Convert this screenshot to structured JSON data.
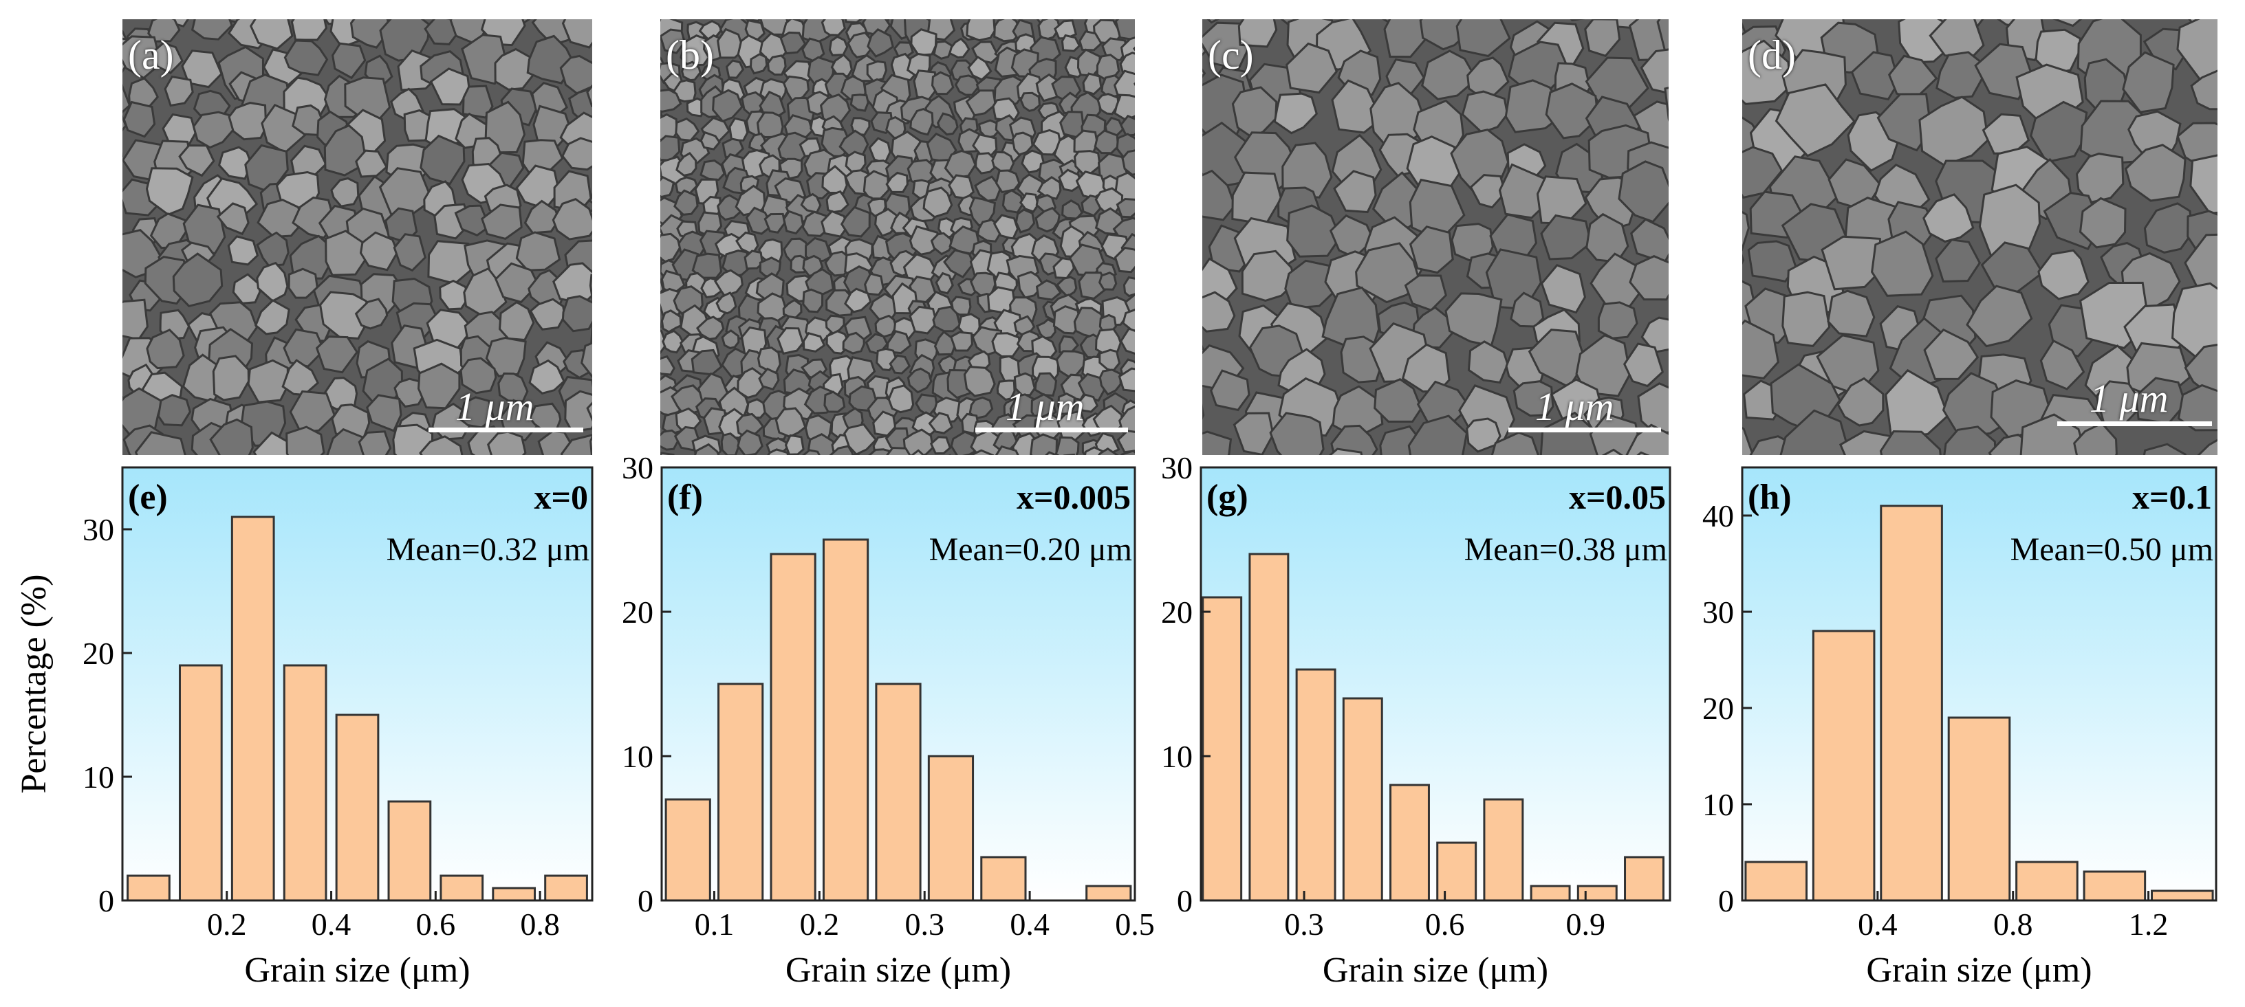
{
  "sem_panels": [
    {
      "label": "(a)",
      "scale": "1 μm"
    },
    {
      "label": "(b)",
      "scale": "1 μm"
    },
    {
      "label": "(c)",
      "scale": "1 μm"
    },
    {
      "label": "(d)",
      "scale": "1 μm"
    }
  ],
  "colors": {
    "bar_fill": "#fcc89a",
    "bar_stroke": "#333333",
    "bg_top": "#a6e6fb",
    "bg_bottom": "#ffffff"
  },
  "chart_data": [
    {
      "type": "bar",
      "panel": "(e)",
      "composition": "x=0",
      "mean": "Mean=0.32 μm",
      "xlabel": "Grain size (μm)",
      "ylabel": "Percentage (%)",
      "x": [
        0.05,
        0.15,
        0.25,
        0.35,
        0.45,
        0.55,
        0.65,
        0.75,
        0.85
      ],
      "values": [
        2,
        19,
        31,
        19,
        15,
        8,
        2,
        1,
        2
      ],
      "bar_width": 0.08,
      "xlim": [
        0,
        0.9
      ],
      "ylim": [
        0,
        35
      ],
      "xticks": [
        0.2,
        0.4,
        0.6,
        0.8
      ],
      "xtick_labels": [
        "0.2",
        "0.4",
        "0.6",
        "0.8"
      ],
      "yticks": [
        0,
        10,
        20,
        30
      ],
      "ytick_labels": [
        "0",
        "10",
        "20",
        "30"
      ]
    },
    {
      "type": "bar",
      "panel": "(f)",
      "composition": "x=0.005",
      "mean": "Mean=0.20 μm",
      "xlabel": "Grain size (μm)",
      "ylabel": "",
      "x": [
        0.075,
        0.125,
        0.175,
        0.225,
        0.275,
        0.325,
        0.375,
        0.425,
        0.475
      ],
      "values": [
        7,
        15,
        24,
        25,
        15,
        10,
        3,
        0,
        1
      ],
      "bar_width": 0.042,
      "xlim": [
        0.05,
        0.5
      ],
      "ylim": [
        0,
        30
      ],
      "xticks": [
        0.1,
        0.2,
        0.3,
        0.4,
        0.5
      ],
      "xtick_labels": [
        "0.1",
        "0.2",
        "0.3",
        "0.4",
        "0.5"
      ],
      "yticks": [
        0,
        10,
        20,
        30
      ],
      "ytick_labels": [
        "0",
        "10",
        "20",
        "30"
      ]
    },
    {
      "type": "bar",
      "panel": "(g)",
      "composition": "x=0.05",
      "mean": "Mean=0.38 μm",
      "xlabel": "Grain size (μm)",
      "ylabel": "",
      "x": [
        0.125,
        0.225,
        0.325,
        0.425,
        0.525,
        0.625,
        0.725,
        0.825,
        0.925,
        1.025
      ],
      "values": [
        21,
        24,
        16,
        14,
        8,
        4,
        7,
        1,
        1,
        3
      ],
      "bar_width": 0.082,
      "xlim": [
        0.08,
        1.08
      ],
      "ylim": [
        0,
        30
      ],
      "xticks": [
        0.3,
        0.6,
        0.9
      ],
      "xtick_labels": [
        "0.3",
        "0.6",
        "0.9"
      ],
      "yticks": [
        0,
        10,
        20,
        30
      ],
      "ytick_labels": [
        "0",
        "10",
        "20",
        "30"
      ]
    },
    {
      "type": "bar",
      "panel": "(h)",
      "composition": "x=0.1",
      "mean": "Mean=0.50 μm",
      "xlabel": "Grain size (μm)",
      "ylabel": "",
      "x": [
        0.1,
        0.3,
        0.5,
        0.7,
        0.9,
        1.1,
        1.3
      ],
      "values": [
        4,
        28,
        41,
        19,
        4,
        3,
        1
      ],
      "bar_width": 0.18,
      "xlim": [
        0,
        1.4
      ],
      "ylim": [
        0,
        45
      ],
      "xticks": [
        0.4,
        0.8,
        1.2
      ],
      "xtick_labels": [
        "0.4",
        "0.8",
        "1.2"
      ],
      "yticks": [
        0,
        10,
        20,
        30,
        40
      ],
      "ytick_labels": [
        "0",
        "10",
        "20",
        "30",
        "40"
      ]
    }
  ]
}
